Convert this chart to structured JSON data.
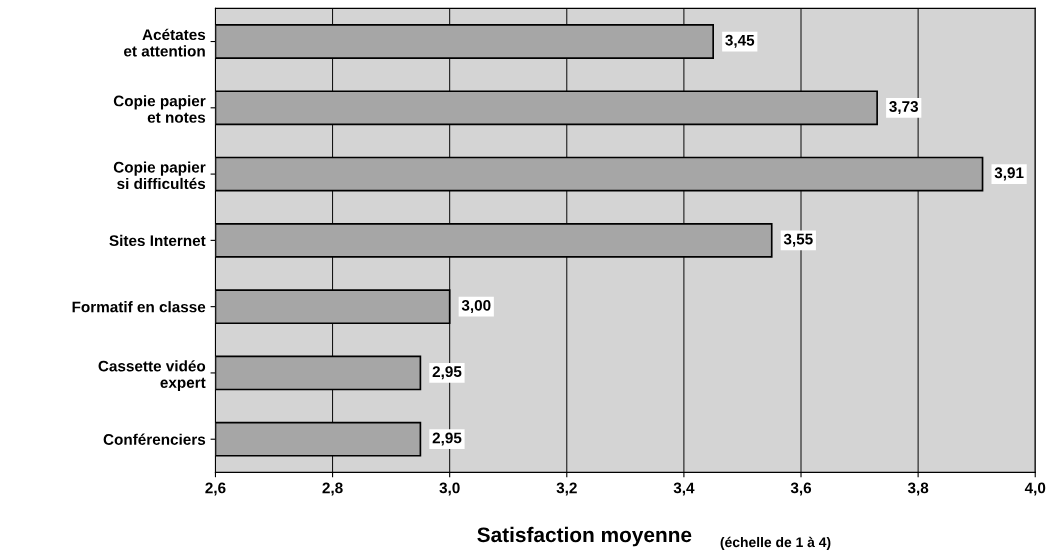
{
  "chart_data": {
    "type": "bar",
    "orientation": "horizontal",
    "xlabel": "Satisfaction moyenne",
    "annotations": [
      "(échelle de 1 à 4)"
    ],
    "categories": [
      "Acétates\net attention",
      "Copie papier\net notes",
      "Copie papier\nsi difficultés",
      "Sites Internet",
      "Formatif en classe",
      "Cassette vidéo\nexpert",
      "Conférenciers"
    ],
    "values": [
      3.45,
      3.73,
      3.91,
      3.55,
      3.0,
      2.95,
      2.95
    ],
    "value_labels": [
      "3,45",
      "3,73",
      "3,91",
      "3,55",
      "3,00",
      "2,95",
      "2,95"
    ],
    "color": "#a6a6a6",
    "xlim": [
      2.6,
      4.0
    ],
    "xticks": [
      {
        "value": 2.6,
        "label": "2,6"
      },
      {
        "value": 2.8,
        "label": "2,8"
      },
      {
        "value": 3.0,
        "label": "3,0"
      },
      {
        "value": 3.2,
        "label": "3,2"
      },
      {
        "value": 3.4,
        "label": "3,4"
      },
      {
        "value": 3.6,
        "label": "3,6"
      },
      {
        "value": 3.8,
        "label": "3,8"
      },
      {
        "value": 4.0,
        "label": "4,0"
      }
    ],
    "grid": "x"
  }
}
